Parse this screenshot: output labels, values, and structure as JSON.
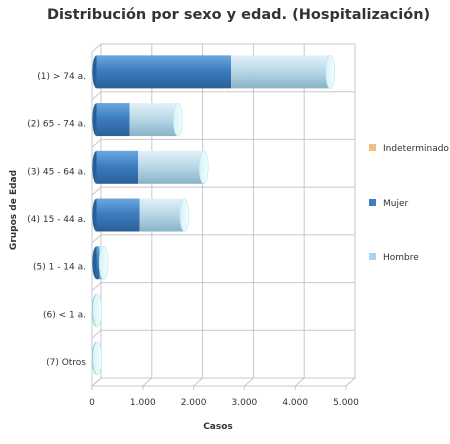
{
  "chart_data": {
    "type": "bar",
    "orientation": "horizontal",
    "stacked": true,
    "title": "Distribución por sexo y edad. (Hospitalización)",
    "xlabel": "Casos",
    "ylabel": "Grupos de Edad",
    "xlim": [
      0,
      5000
    ],
    "x_ticks": [
      0,
      1000,
      2000,
      3000,
      4000,
      5000
    ],
    "x_tick_labels": [
      "0",
      "1.000",
      "2.000",
      "3.000",
      "4.000",
      "5.000"
    ],
    "categories": [
      "(1) > 74 a.",
      "(2) 65 - 74 a.",
      "(3) 45 - 64 a.",
      "(4) 15 - 44 a.",
      "(5) 1 - 14 a.",
      "(6) < 1 a.",
      "(7) Otros"
    ],
    "series": [
      {
        "name": "Indeterminado",
        "color": "#f0c080",
        "values": [
          0,
          0,
          0,
          0,
          0,
          0,
          0
        ]
      },
      {
        "name": "Mujer",
        "color": "#3d7ebf",
        "values": [
          2650,
          650,
          820,
          850,
          60,
          5,
          5
        ]
      },
      {
        "name": "Hombre",
        "color": "#a8d4f0",
        "values": [
          1950,
          950,
          1290,
          880,
          80,
          10,
          10
        ]
      }
    ],
    "grid": true,
    "legend_position": "right",
    "style": "3d-cylinder"
  }
}
